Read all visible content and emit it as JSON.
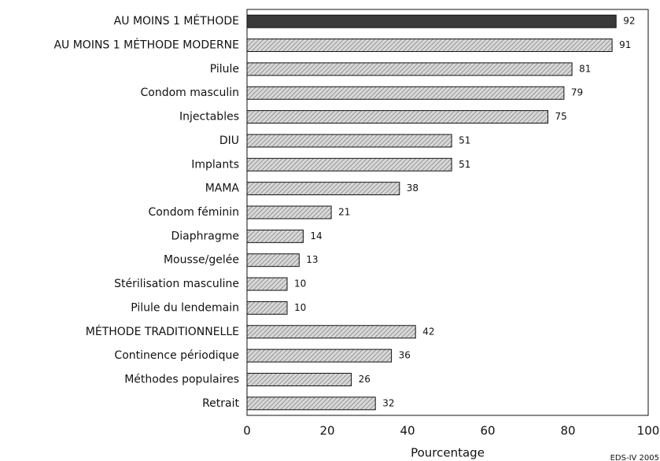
{
  "chart_data": {
    "type": "bar",
    "orientation": "horizontal",
    "categories": [
      "AU MOINS 1 MÉTHODE",
      "AU MOINS 1 MÉTHODE MODERNE",
      "Pilule",
      "Condom masculin",
      "Injectables",
      "DIU",
      "Implants",
      "MAMA",
      "Condom féminin",
      "Diaphragme",
      "Mousse/gelée",
      "Stérilisation masculine",
      "Pilule du lendemain",
      "MÉTHODE TRADITIONNELLE",
      "Continence périodique",
      "Méthodes populaires",
      "Retrait"
    ],
    "values": [
      92,
      91,
      81,
      79,
      75,
      51,
      51,
      38,
      21,
      14,
      13,
      10,
      10,
      42,
      36,
      26,
      32
    ],
    "colors": [
      "#3a3a3a",
      "hatch",
      "hatch",
      "hatch",
      "hatch",
      "hatch",
      "hatch",
      "hatch",
      "hatch",
      "hatch",
      "hatch",
      "hatch",
      "hatch",
      "hatch",
      "hatch",
      "hatch",
      "hatch"
    ],
    "xlabel": "Pourcentage",
    "xlim": [
      0,
      100
    ],
    "xticks": [
      0,
      20,
      40,
      60,
      80,
      100
    ],
    "grid": false,
    "source": "EDS-IV 2005"
  }
}
